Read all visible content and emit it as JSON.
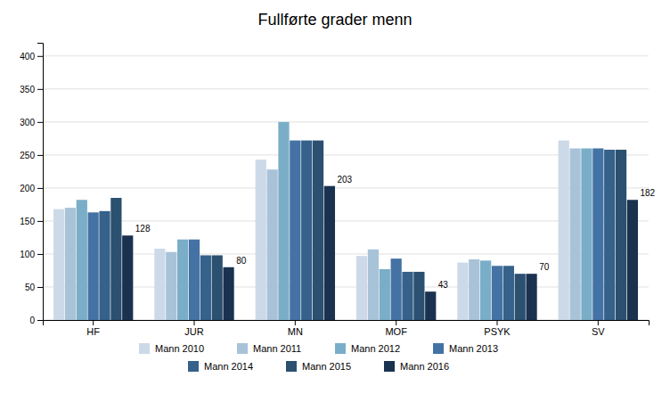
{
  "chart_data": {
    "type": "bar",
    "title": "Fullførte grader menn",
    "categories": [
      "HF",
      "JUR",
      "MN",
      "MOF",
      "PSYK",
      "SV"
    ],
    "series": [
      {
        "name": "Mann 2010",
        "color": "#ccd9e8",
        "values": [
          168,
          108,
          243,
          97,
          87,
          272
        ]
      },
      {
        "name": "Mann 2011",
        "color": "#a8c3d8",
        "values": [
          170,
          103,
          228,
          107,
          92,
          260
        ]
      },
      {
        "name": "Mann 2012",
        "color": "#7aaec8",
        "values": [
          182,
          122,
          300,
          77,
          90,
          260
        ]
      },
      {
        "name": "Mann 2013",
        "color": "#4472a4",
        "values": [
          163,
          122,
          272,
          93,
          82,
          260
        ]
      },
      {
        "name": "Mann 2014",
        "color": "#35618a",
        "values": [
          165,
          98,
          272,
          73,
          82,
          258
        ]
      },
      {
        "name": "Mann 2015",
        "color": "#2b5070",
        "values": [
          185,
          98,
          272,
          73,
          70,
          258
        ]
      },
      {
        "name": "Mann 2016",
        "color": "#1a3250",
        "values": [
          128,
          80,
          203,
          43,
          70,
          182
        ],
        "data_labels": true
      }
    ],
    "ylim": [
      0,
      420
    ],
    "yticks": [
      0,
      50,
      100,
      150,
      200,
      250,
      300,
      350,
      400
    ],
    "grid": true,
    "legend": "bottom"
  }
}
